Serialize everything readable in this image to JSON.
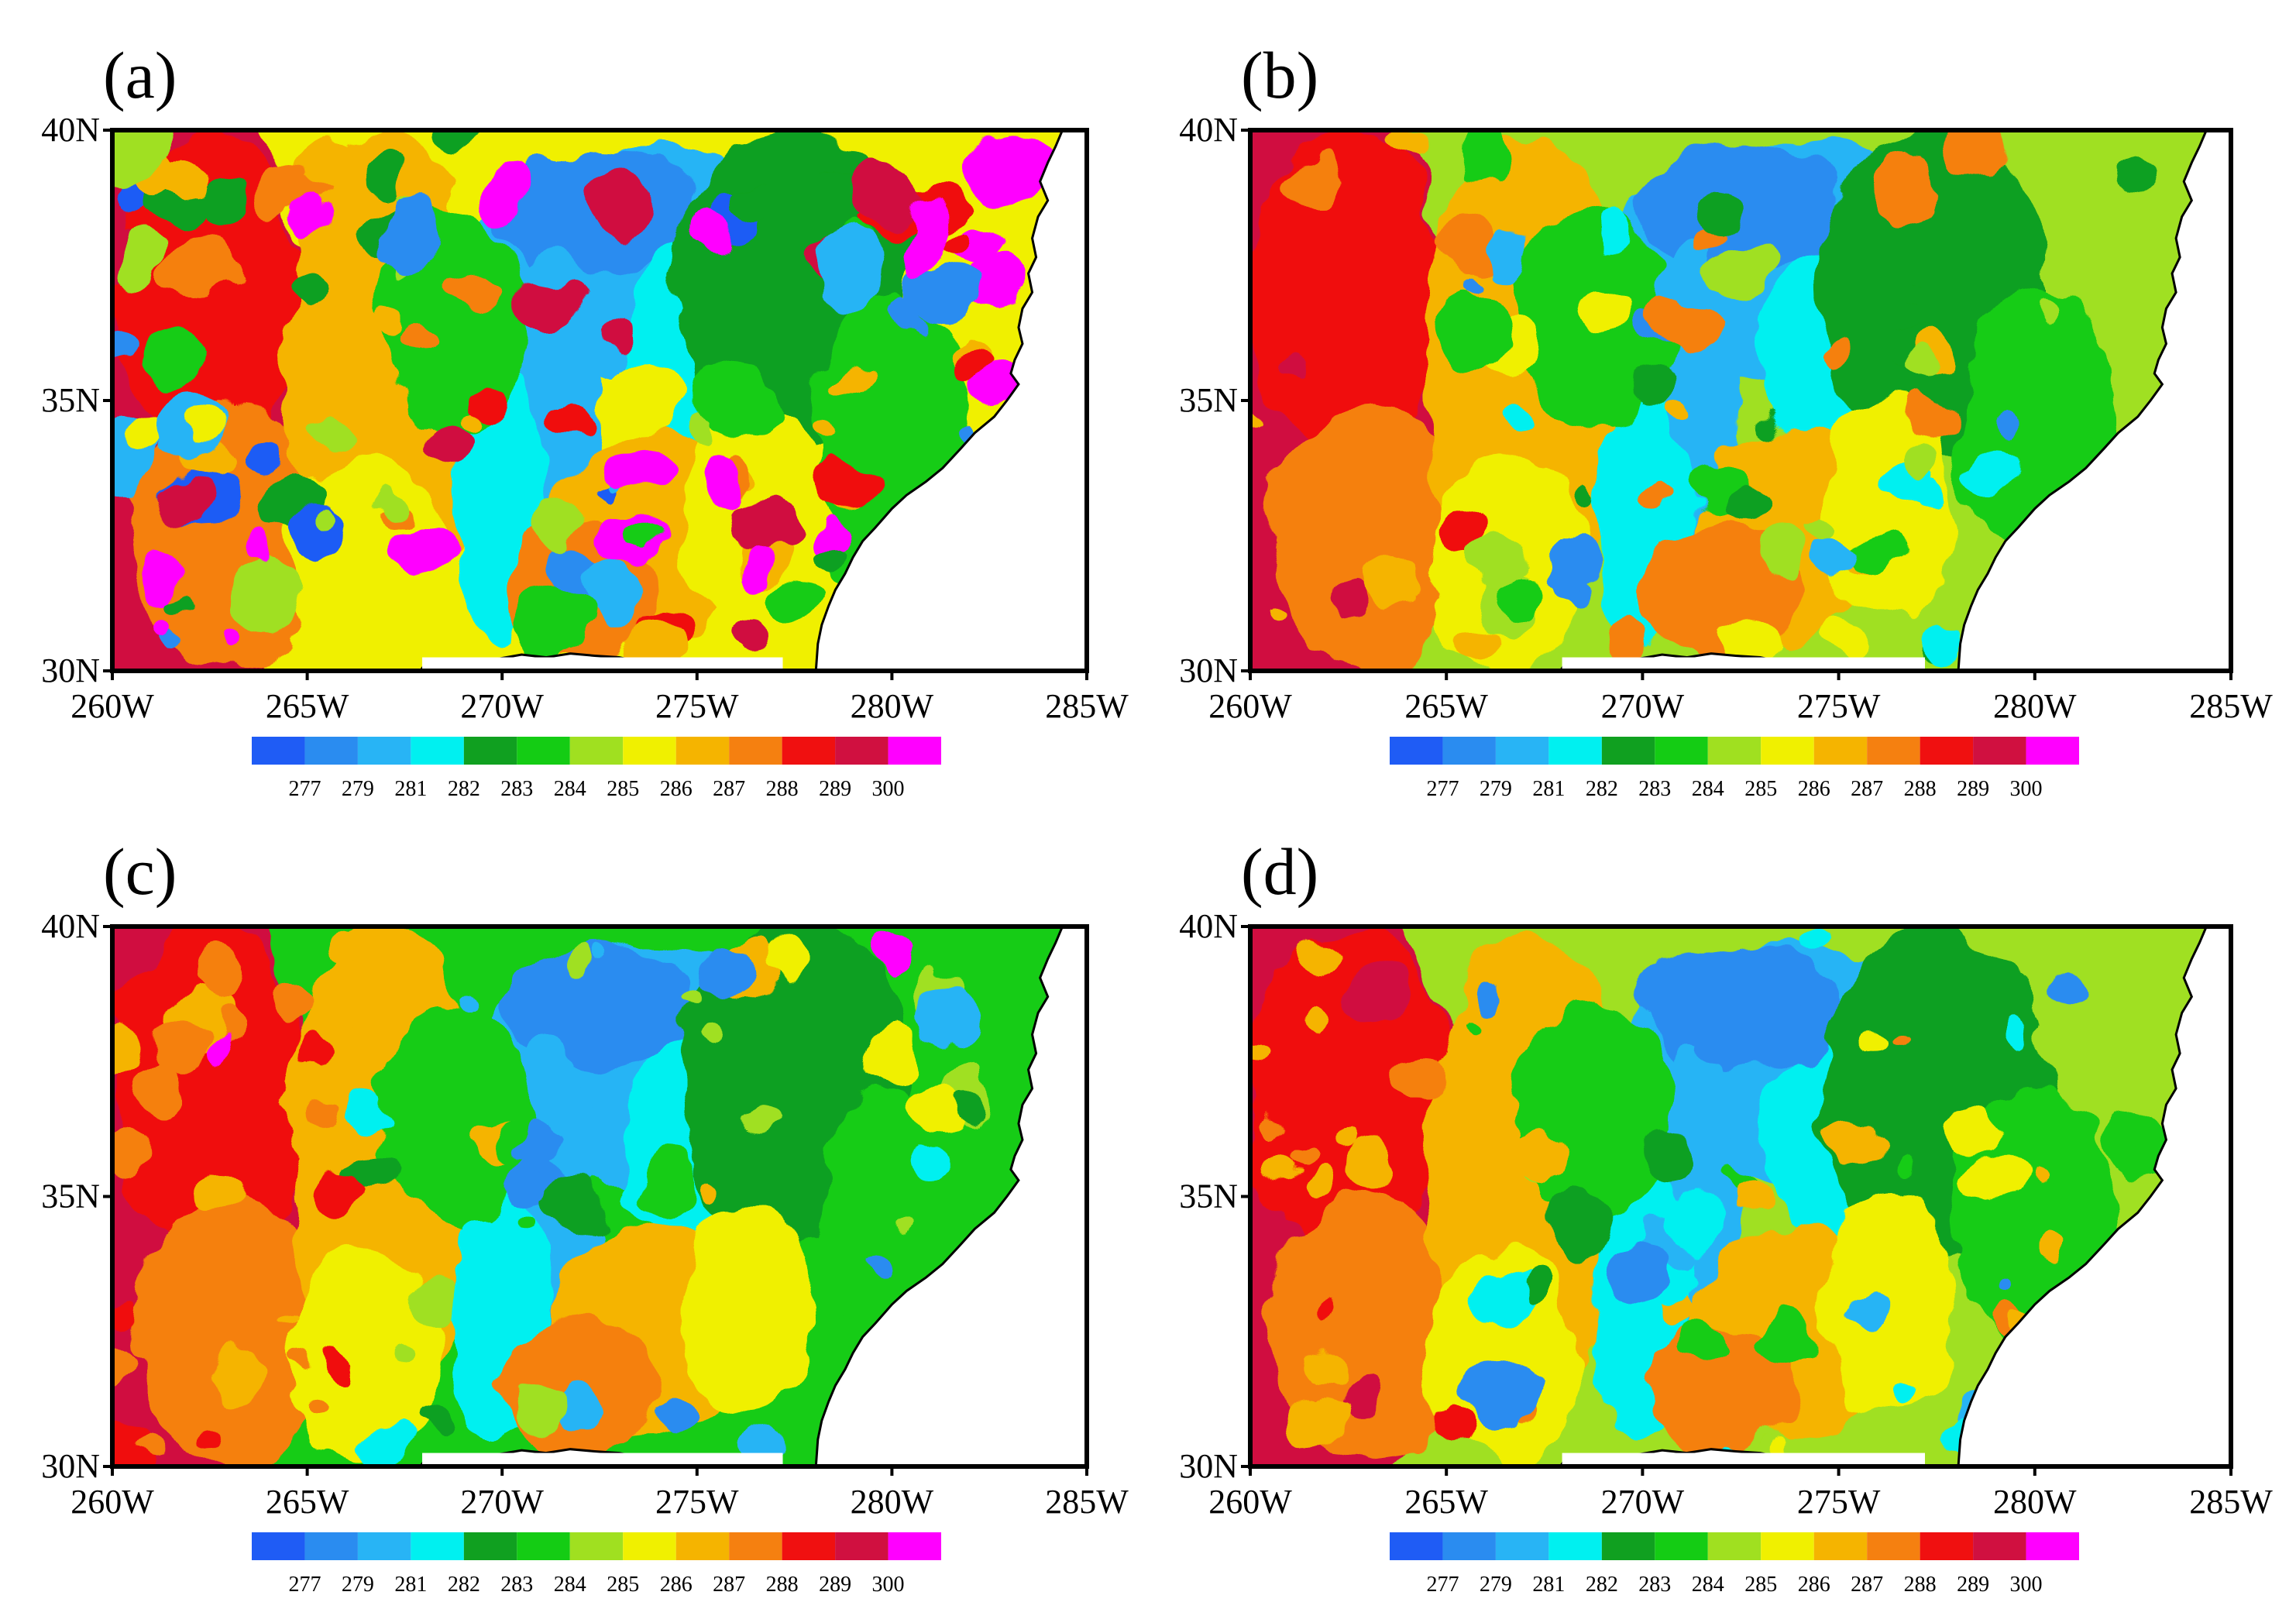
{
  "panels": [
    {
      "label": "(a)",
      "variant": 0
    },
    {
      "label": "(b)",
      "variant": 1
    },
    {
      "label": "(c)",
      "variant": 2
    },
    {
      "label": "(d)",
      "variant": 3
    }
  ],
  "lat_ticks": [
    {
      "value": 30,
      "label": "30N"
    },
    {
      "value": 35,
      "label": "35N"
    },
    {
      "value": 40,
      "label": "40N"
    }
  ],
  "lon_ticks": [
    {
      "value": 260,
      "label": "260W"
    },
    {
      "value": 265,
      "label": "265W"
    },
    {
      "value": 270,
      "label": "270W"
    },
    {
      "value": 275,
      "label": "275W"
    },
    {
      "value": 280,
      "label": "280W"
    },
    {
      "value": 285,
      "label": "285W"
    }
  ],
  "lon_range": [
    260,
    285
  ],
  "lat_range": [
    30,
    40
  ],
  "colorbar": {
    "colors": [
      "#1f5cf5",
      "#2a8cf0",
      "#28b4f5",
      "#00f0f0",
      "#10a020",
      "#14cc14",
      "#a0e020",
      "#f0f000",
      "#f5b400",
      "#f58010",
      "#f01010",
      "#d01040",
      "#ff00ff"
    ],
    "labels": [
      "277",
      "279",
      "281",
      "282",
      "283",
      "284",
      "285",
      "286",
      "287",
      "288",
      "289",
      "300"
    ]
  },
  "land_color": "#ffffff",
  "coast_color": "#000000"
}
